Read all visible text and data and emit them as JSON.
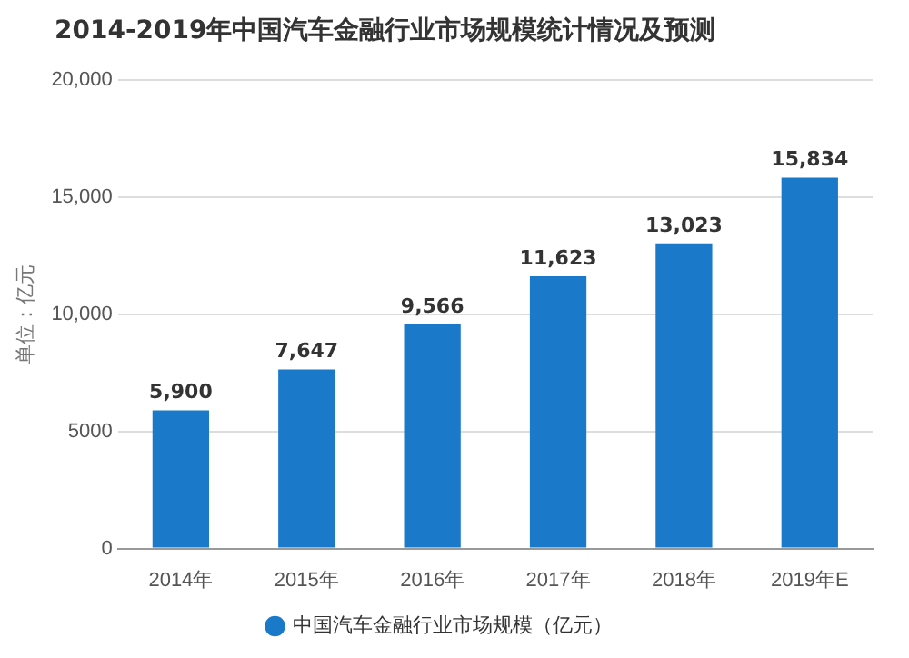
{
  "chart_data": {
    "type": "bar",
    "title": "2014-2019年中国汽车金融行业市场规模统计情况及预测",
    "ylabel": "单位：亿元",
    "categories": [
      "2014年",
      "2015年",
      "2016年",
      "2017年",
      "2018年",
      "2019年E"
    ],
    "series": [
      {
        "name": "中国汽车金融行业市场规模（亿元）",
        "color": "#1a7ac9",
        "values": [
          5900,
          7647,
          9566,
          11623,
          13023,
          15834
        ],
        "value_labels": [
          "5,900",
          "7,647",
          "9,566",
          "11,623",
          "13,023",
          "15,834"
        ]
      }
    ],
    "ylim": [
      0,
      20000
    ],
    "yticks": [
      0,
      {
        "value": 5000,
        "label": "5000"
      },
      {
        "value": 10000,
        "label": "10,000"
      },
      {
        "value": 15000,
        "label": "15,000"
      },
      {
        "value": 20000,
        "label": "20,000"
      }
    ],
    "grid": "y",
    "legend": "bottom"
  }
}
